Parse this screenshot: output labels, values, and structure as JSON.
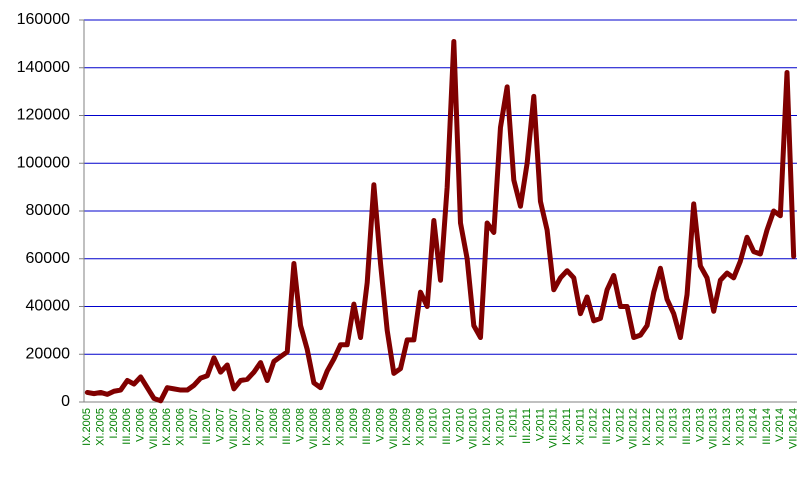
{
  "chart_data": {
    "type": "line",
    "categories": [
      "IX.2005",
      null,
      "XI.2005",
      null,
      "I.2006",
      null,
      "III.2006",
      null,
      "V.2006",
      null,
      "VII.2006",
      null,
      "IX.2006",
      null,
      "XI.2006",
      null,
      "I.2007",
      null,
      "III.2007",
      null,
      "V.2007",
      null,
      "VII.2007",
      null,
      "IX.2007",
      null,
      "XI.2007",
      null,
      "I.2008",
      null,
      "III.2008",
      null,
      "V.2008",
      null,
      "VII.2008",
      null,
      "IX.2008",
      null,
      "XI.2008",
      null,
      "I.2009",
      null,
      "III.2009",
      null,
      "V.2009",
      null,
      "VII.2009",
      null,
      "IX.2009",
      null,
      "XI.2009",
      null,
      "I.2010",
      null,
      "III.2010",
      null,
      "V.2010",
      null,
      "VII.2010",
      null,
      "IX.2010",
      null,
      "XI.2010",
      null,
      "I.2011",
      null,
      "III.2011",
      null,
      "V.2011",
      null,
      "VII.2011",
      null,
      "IX.2011",
      null,
      "XI.2011",
      null,
      "I.2012",
      null,
      "III.2012",
      null,
      "V.2012",
      null,
      "VII.2012",
      null,
      "IX.2012",
      null,
      "XI.2012",
      null,
      "I.2013",
      null,
      "III.2013",
      null,
      "V.2013",
      null,
      "VII.2013",
      null,
      "IX.2013",
      null,
      "XI.2013",
      null,
      "I.2014",
      null,
      "III.2014",
      null,
      "V.2014",
      null,
      "VII.2014"
    ],
    "series": [
      {
        "color": "#800000",
        "values": [
          4000,
          3500,
          4000,
          3200,
          4500,
          5000,
          9000,
          7500,
          10500,
          6000,
          1500,
          500,
          6000,
          5500,
          5000,
          5000,
          7000,
          10000,
          11000,
          18500,
          12500,
          15500,
          5500,
          9000,
          9500,
          12500,
          16500,
          9000,
          17000,
          19000,
          21000,
          58000,
          32000,
          22000,
          8000,
          6000,
          13000,
          18000,
          24000,
          24000,
          41000,
          27000,
          50000,
          91000,
          58000,
          30000,
          12000,
          14000,
          26000,
          26000,
          46000,
          40000,
          76000,
          51000,
          90000,
          151000,
          75000,
          60000,
          32000,
          27000,
          75000,
          71000,
          115000,
          132000,
          93000,
          82000,
          100000,
          128000,
          84000,
          72000,
          47000,
          52000,
          55000,
          52000,
          37000,
          44000,
          34000,
          35000,
          47000,
          53000,
          40000,
          40000,
          27000,
          28000,
          32000,
          46000,
          56000,
          43000,
          37000,
          27000,
          45000,
          83000,
          57000,
          52000,
          38000,
          51000,
          54000,
          52000,
          59000,
          69000,
          63000,
          62000,
          72000,
          80000,
          78000,
          138000,
          61000
        ]
      }
    ],
    "ylim": [
      0,
      160000
    ],
    "yticks": [
      0,
      20000,
      40000,
      60000,
      80000,
      100000,
      120000,
      140000,
      160000
    ],
    "grid": true,
    "grid_color": "#0000cc",
    "category_label_color": "#008000"
  }
}
